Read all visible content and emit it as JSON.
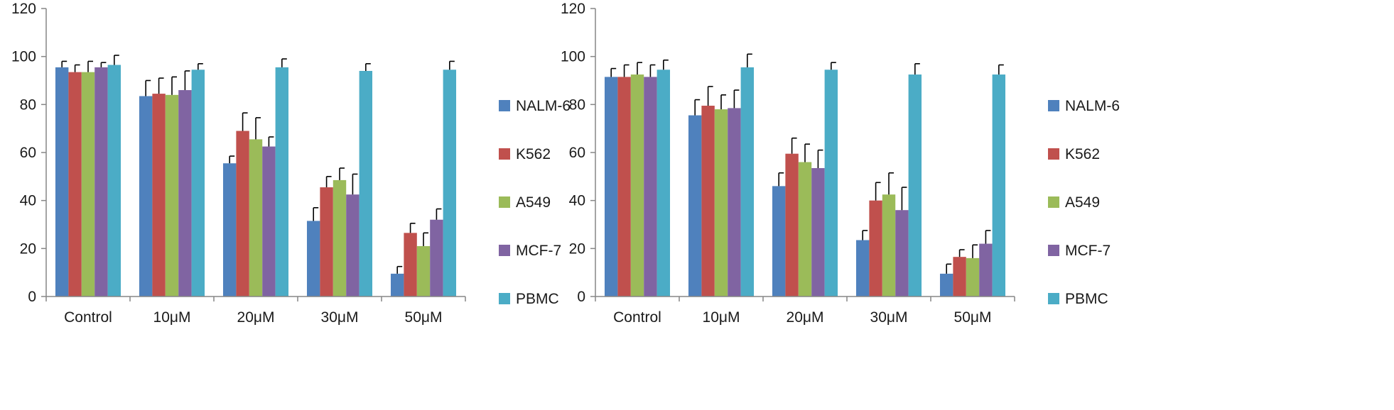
{
  "chart_data": [
    {
      "type": "bar",
      "title": "",
      "xlabel": "",
      "ylabel": "",
      "ylim": [
        0,
        120
      ],
      "yticks": [
        0,
        20,
        40,
        60,
        80,
        100,
        120
      ],
      "grid": false,
      "legend_position": "right",
      "categories": [
        "Control",
        "10μM",
        "20μM",
        "30μM",
        "50μM"
      ],
      "series": [
        {
          "name": "NALM-6",
          "color": "#4F81BD",
          "values": [
            95.5,
            83.5,
            55.5,
            31.5,
            9.5
          ],
          "errors": [
            2.5,
            6.5,
            3.0,
            5.5,
            3.0
          ]
        },
        {
          "name": "K562",
          "color": "#C0504D",
          "values": [
            93.5,
            84.5,
            69.0,
            45.5,
            26.5
          ],
          "errors": [
            3.0,
            6.5,
            7.5,
            4.5,
            4.0
          ]
        },
        {
          "name": "A549",
          "color": "#9BBB59",
          "values": [
            93.5,
            84.0,
            65.5,
            48.5,
            21.0
          ],
          "errors": [
            4.5,
            7.5,
            9.0,
            5.0,
            5.5
          ]
        },
        {
          "name": "MCF-7",
          "color": "#8064A2",
          "values": [
            95.5,
            86.0,
            62.5,
            42.5,
            32.0
          ],
          "errors": [
            2.0,
            8.0,
            4.0,
            8.5,
            4.5
          ]
        },
        {
          "name": "PBMC",
          "color": "#4BACC6",
          "values": [
            96.5,
            94.5,
            95.5,
            94.0,
            94.5
          ],
          "errors": [
            4.0,
            2.5,
            3.5,
            3.0,
            3.5
          ]
        }
      ]
    },
    {
      "type": "bar",
      "title": "",
      "xlabel": "",
      "ylabel": "",
      "ylim": [
        0,
        120
      ],
      "yticks": [
        0,
        20,
        40,
        60,
        80,
        100,
        120
      ],
      "grid": false,
      "legend_position": "right",
      "categories": [
        "Control",
        "10μM",
        "20μM",
        "30μM",
        "50μM"
      ],
      "series": [
        {
          "name": "NALM-6",
          "color": "#4F81BD",
          "values": [
            91.5,
            75.5,
            46.0,
            23.5,
            9.5
          ],
          "errors": [
            3.5,
            6.5,
            5.5,
            4.0,
            4.0
          ]
        },
        {
          "name": "K562",
          "color": "#C0504D",
          "values": [
            91.5,
            79.5,
            59.5,
            40.0,
            16.5
          ],
          "errors": [
            5.0,
            8.0,
            6.5,
            7.5,
            3.0
          ]
        },
        {
          "name": "A549",
          "color": "#9BBB59",
          "values": [
            92.5,
            78.0,
            56.0,
            42.5,
            16.0
          ],
          "errors": [
            5.0,
            6.0,
            7.5,
            9.0,
            5.5
          ]
        },
        {
          "name": "MCF-7",
          "color": "#8064A2",
          "values": [
            91.5,
            78.5,
            53.5,
            36.0,
            22.0
          ],
          "errors": [
            5.0,
            7.5,
            7.5,
            9.5,
            5.5
          ]
        },
        {
          "name": "PBMC",
          "color": "#4BACC6",
          "values": [
            94.5,
            95.5,
            94.5,
            92.5,
            92.5
          ],
          "errors": [
            4.0,
            5.5,
            3.0,
            4.5,
            4.0
          ]
        }
      ]
    }
  ]
}
